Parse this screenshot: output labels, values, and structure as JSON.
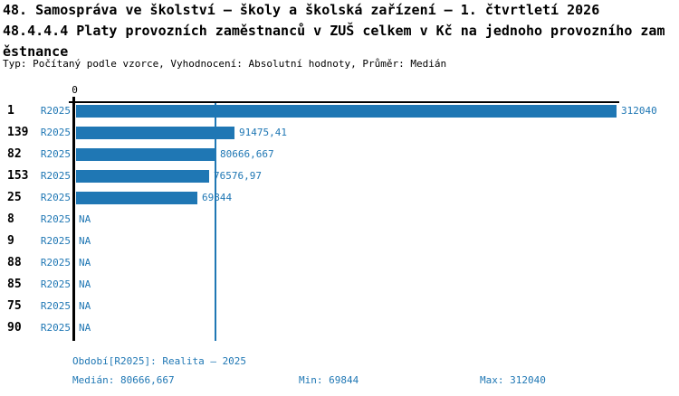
{
  "header": {
    "title_line1": "48. Samospráva ve školství – školy a školská zařízení – 1. čtvrtletí 2026",
    "title_line2": "48.4.4.4 Platy provozních zaměstnanců v ZUŠ celkem v Kč na jednoho provozního zam",
    "title_line3": "ěstnance",
    "subtitle": "Typ: Počítaný podle vzorce, Vyhodnocení: Absolutní hodnoty, Průměr: Medián"
  },
  "chart_data": {
    "type": "bar",
    "orientation": "horizontal",
    "categories": [
      "1",
      "139",
      "82",
      "153",
      "25",
      "8",
      "9",
      "88",
      "85",
      "75",
      "90"
    ],
    "series": [
      {
        "name": "R2025",
        "values": [
          312040,
          91475.41,
          80666.667,
          76576.97,
          69844,
          null,
          null,
          null,
          null,
          null,
          null
        ]
      }
    ],
    "value_labels": [
      "312040",
      "91475,41",
      "80666,667",
      "76576,97",
      "69844",
      "NA",
      "NA",
      "NA",
      "NA",
      "NA",
      "NA"
    ],
    "na_label": "NA",
    "zero_tick_label": "0",
    "xlim": [
      0,
      312040
    ],
    "reference_line_value": 80666.667,
    "grid": false,
    "legend_position": "none"
  },
  "footer": {
    "period": "Období[R2025]: Realita – 2025",
    "median": "Medián: 80666,667",
    "min": "Min: 69844",
    "max": "Max: 312040"
  },
  "colors": {
    "bar": "#1F77B4",
    "accent_text": "#1F77B4",
    "axis": "#000000",
    "reference_line": "#1F77B4"
  }
}
